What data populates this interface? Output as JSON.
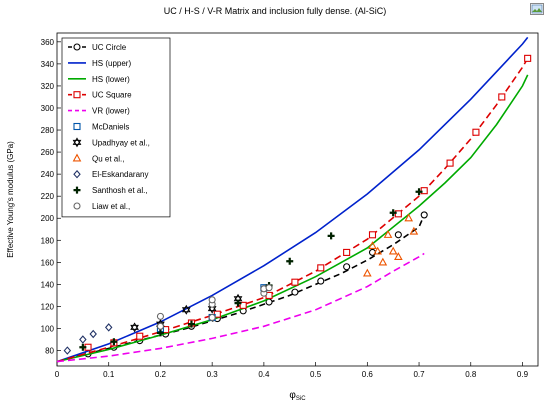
{
  "title": "UC / H-S / V-R Matrix and inclusion fully dense. (Al-SiC)",
  "export_icon": "image-export-icon",
  "chart_data": {
    "type": "line",
    "title": "UC / H-S / V-R Matrix and inclusion fully dense. (Al-SiC)",
    "xlabel": "φ",
    "xlabel_sub": "SiC",
    "ylabel": "Effective Young's modulus (GPa)",
    "xlim": [
      0,
      0.93
    ],
    "ylim": [
      66,
      368
    ],
    "xticks": [
      0,
      0.1,
      0.2,
      0.3,
      0.4,
      0.5,
      0.6,
      0.7,
      0.8,
      0.9
    ],
    "yticks": [
      80,
      100,
      120,
      140,
      160,
      180,
      200,
      220,
      240,
      260,
      280,
      300,
      320,
      340,
      360
    ],
    "grid": false,
    "legend_position": "top-left",
    "series": [
      {
        "name": "UC Circle",
        "kind": "line",
        "color": "#000000",
        "dash": "6,4",
        "marker": "circle",
        "x": [
          0,
          0.05,
          0.1,
          0.15,
          0.2,
          0.25,
          0.3,
          0.35,
          0.4,
          0.45,
          0.5,
          0.55,
          0.6,
          0.65,
          0.7,
          0.71
        ],
        "y": [
          70,
          76,
          82,
          88,
          94,
          100,
          107,
          114,
          122,
          130,
          140,
          150,
          162,
          176,
          192,
          203
        ],
        "marker_x": [
          0.06,
          0.11,
          0.16,
          0.21,
          0.26,
          0.31,
          0.36,
          0.41,
          0.46,
          0.51,
          0.56,
          0.61,
          0.66,
          0.71
        ],
        "marker_y": [
          77,
          83,
          89,
          95,
          102,
          109,
          116,
          124,
          133,
          143,
          156,
          169,
          185,
          203
        ]
      },
      {
        "name": "HS (upper)",
        "kind": "line",
        "color": "#0022cc",
        "dash": "",
        "x": [
          0,
          0.1,
          0.2,
          0.3,
          0.4,
          0.5,
          0.6,
          0.7,
          0.8,
          0.9,
          0.91
        ],
        "y": [
          70,
          86,
          106,
          130,
          157,
          187,
          222,
          262,
          308,
          358,
          364
        ]
      },
      {
        "name": "HS (lower)",
        "kind": "line",
        "color": "#00aa00",
        "dash": "",
        "x": [
          0,
          0.1,
          0.2,
          0.3,
          0.4,
          0.5,
          0.6,
          0.7,
          0.75,
          0.8,
          0.85,
          0.9,
          0.91
        ],
        "y": [
          70,
          81,
          94,
          108,
          125,
          147,
          173,
          211,
          232,
          255,
          285,
          320,
          330
        ]
      },
      {
        "name": "UC Square",
        "kind": "line",
        "color": "#dd0000",
        "dash": "7,4",
        "marker": "square",
        "x": [
          0,
          0.1,
          0.2,
          0.3,
          0.4,
          0.5,
          0.6,
          0.7,
          0.75,
          0.8,
          0.85,
          0.9,
          0.91
        ],
        "y": [
          70,
          83,
          97,
          112,
          128,
          152,
          181,
          220,
          245,
          272,
          303,
          337,
          345
        ],
        "marker_x": [
          0.06,
          0.11,
          0.16,
          0.21,
          0.26,
          0.31,
          0.36,
          0.41,
          0.46,
          0.51,
          0.56,
          0.61,
          0.66,
          0.71,
          0.76,
          0.81,
          0.86,
          0.91
        ],
        "marker_y": [
          83,
          87,
          93,
          99,
          105,
          113,
          121,
          130,
          142,
          155,
          169,
          185,
          204,
          225,
          250,
          278,
          310,
          345
        ]
      },
      {
        "name": "VR (lower)",
        "kind": "line",
        "color": "#ee00ee",
        "dash": "7,4",
        "x": [
          0,
          0.1,
          0.2,
          0.3,
          0.4,
          0.5,
          0.6,
          0.65,
          0.7,
          0.71
        ],
        "y": [
          70,
          75,
          82,
          91,
          102,
          117,
          138,
          152,
          165,
          168
        ]
      },
      {
        "name": "McDaniels",
        "kind": "scatter",
        "color": "#0055aa",
        "marker": "square",
        "x": [
          0.2,
          0.3,
          0.4
        ],
        "y": [
          100,
          110,
          137
        ]
      },
      {
        "name": "Upadhyay et al.,",
        "kind": "scatter",
        "color": "#000000",
        "marker": "star",
        "x": [
          0.15,
          0.2,
          0.25,
          0.3,
          0.35
        ],
        "y": [
          101,
          104,
          117,
          118,
          127
        ]
      },
      {
        "name": "Qu et al.,",
        "kind": "scatter",
        "color": "#ee5500",
        "marker": "triangle",
        "x": [
          0.6,
          0.61,
          0.62,
          0.63,
          0.64,
          0.65,
          0.66,
          0.68,
          0.69
        ],
        "y": [
          150,
          175,
          170,
          160,
          185,
          170,
          165,
          200,
          188
        ]
      },
      {
        "name": "El-Eskandarany",
        "kind": "scatter",
        "color": "#223366",
        "marker": "diamond",
        "x": [
          0.02,
          0.05,
          0.07,
          0.1
        ],
        "y": [
          80,
          90,
          95,
          101
        ]
      },
      {
        "name": "Santhosh et al.,",
        "kind": "scatter",
        "color": "#002200",
        "marker": "plus",
        "x": [
          0.05,
          0.11,
          0.2,
          0.26,
          0.35,
          0.41,
          0.45,
          0.53,
          0.65,
          0.7
        ],
        "y": [
          83,
          88,
          96,
          104,
          123,
          139,
          161,
          184,
          205,
          224
        ]
      },
      {
        "name": "Liaw et al.,",
        "kind": "scatter",
        "color": "#666666",
        "marker": "hollow-circle",
        "x": [
          0.2,
          0.2,
          0.3,
          0.3,
          0.3,
          0.4,
          0.4,
          0.41
        ],
        "y": [
          102,
          111,
          110,
          122,
          126,
          132,
          136,
          137
        ]
      }
    ]
  }
}
